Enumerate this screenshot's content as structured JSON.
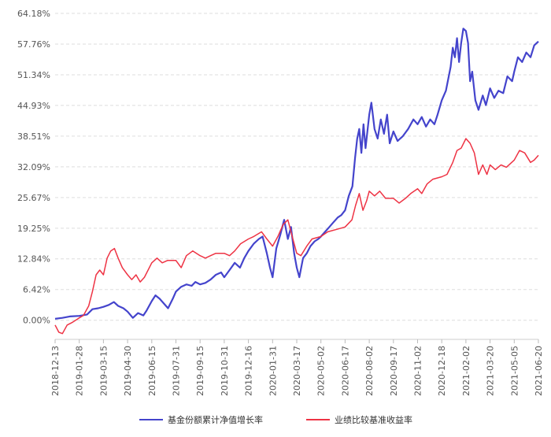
{
  "chart_data": {
    "type": "line",
    "title": "",
    "xlabel": "",
    "ylabel": "",
    "ylim": [
      -4.0,
      64.18
    ],
    "y_ticks": [
      "64.18%",
      "57.76%",
      "51.34%",
      "44.93%",
      "38.51%",
      "32.09%",
      "25.67%",
      "19.25%",
      "12.84%",
      "6.42%",
      "0.00%"
    ],
    "y_tick_values": [
      64.18,
      57.76,
      51.34,
      44.93,
      38.51,
      32.09,
      25.67,
      19.25,
      12.84,
      6.42,
      0.0
    ],
    "x_ticks": [
      "2018-12-13",
      "2019-01-28",
      "2019-03-15",
      "2019-04-30",
      "2019-06-15",
      "2019-07-31",
      "2019-09-15",
      "2019-10-31",
      "2019-12-16",
      "2020-01-31",
      "2020-03-17",
      "2020-05-02",
      "2020-06-17",
      "2020-08-02",
      "2020-09-17",
      "2020-11-02",
      "2020-12-18",
      "2021-02-02",
      "2021-03-20",
      "2021-05-05",
      "2021-06-20"
    ],
    "grid": "horizontal-dashed",
    "legend_position": "bottom",
    "series": [
      {
        "name": "基金份额累计净值增长率",
        "color": "#4444cc",
        "points": [
          [
            "2018-12-13",
            0.3
          ],
          [
            "2018-12-27",
            0.5
          ],
          [
            "2019-01-10",
            0.8
          ],
          [
            "2019-01-28",
            0.9
          ],
          [
            "2019-02-12",
            1.2
          ],
          [
            "2019-02-22",
            2.3
          ],
          [
            "2019-03-05",
            2.5
          ],
          [
            "2019-03-15",
            2.8
          ],
          [
            "2019-03-25",
            3.2
          ],
          [
            "2019-04-04",
            3.8
          ],
          [
            "2019-04-12",
            3.0
          ],
          [
            "2019-04-22",
            2.5
          ],
          [
            "2019-04-30",
            1.8
          ],
          [
            "2019-05-10",
            0.5
          ],
          [
            "2019-05-20",
            1.5
          ],
          [
            "2019-05-30",
            1.0
          ],
          [
            "2019-06-05",
            2.0
          ],
          [
            "2019-06-15",
            4.0
          ],
          [
            "2019-06-22",
            5.2
          ],
          [
            "2019-06-30",
            4.5
          ],
          [
            "2019-07-08",
            3.5
          ],
          [
            "2019-07-16",
            2.5
          ],
          [
            "2019-07-25",
            4.5
          ],
          [
            "2019-07-31",
            6.0
          ],
          [
            "2019-08-10",
            7.0
          ],
          [
            "2019-08-20",
            7.5
          ],
          [
            "2019-08-30",
            7.2
          ],
          [
            "2019-09-06",
            8.0
          ],
          [
            "2019-09-15",
            7.5
          ],
          [
            "2019-09-25",
            7.8
          ],
          [
            "2019-10-05",
            8.5
          ],
          [
            "2019-10-15",
            9.5
          ],
          [
            "2019-10-25",
            10.0
          ],
          [
            "2019-10-31",
            9.0
          ],
          [
            "2019-11-10",
            10.5
          ],
          [
            "2019-11-20",
            12.0
          ],
          [
            "2019-11-30",
            11.0
          ],
          [
            "2019-12-08",
            13.0
          ],
          [
            "2019-12-16",
            14.5
          ],
          [
            "2019-12-26",
            16.0
          ],
          [
            "2020-01-05",
            17.0
          ],
          [
            "2020-01-12",
            17.5
          ],
          [
            "2020-01-20",
            14.0
          ],
          [
            "2020-01-26",
            11.0
          ],
          [
            "2020-01-31",
            9.0
          ],
          [
            "2020-02-07",
            15.0
          ],
          [
            "2020-02-15",
            18.0
          ],
          [
            "2020-02-22",
            21.0
          ],
          [
            "2020-02-29",
            17.0
          ],
          [
            "2020-03-06",
            19.5
          ],
          [
            "2020-03-12",
            14.0
          ],
          [
            "2020-03-17",
            11.0
          ],
          [
            "2020-03-22",
            9.0
          ],
          [
            "2020-03-29",
            13.0
          ],
          [
            "2020-04-05",
            14.0
          ],
          [
            "2020-04-12",
            15.5
          ],
          [
            "2020-04-20",
            16.5
          ],
          [
            "2020-04-27",
            17.0
          ],
          [
            "2020-05-02",
            17.5
          ],
          [
            "2020-05-10",
            18.5
          ],
          [
            "2020-05-18",
            19.5
          ],
          [
            "2020-05-26",
            20.5
          ],
          [
            "2020-06-03",
            21.5
          ],
          [
            "2020-06-10",
            22.0
          ],
          [
            "2020-06-17",
            23.0
          ],
          [
            "2020-06-24",
            26.0
          ],
          [
            "2020-07-01",
            28.0
          ],
          [
            "2020-07-06",
            34.0
          ],
          [
            "2020-07-10",
            38.0
          ],
          [
            "2020-07-14",
            40.0
          ],
          [
            "2020-07-18",
            35.0
          ],
          [
            "2020-07-22",
            41.0
          ],
          [
            "2020-07-26",
            36.0
          ],
          [
            "2020-08-02",
            43.0
          ],
          [
            "2020-08-06",
            45.5
          ],
          [
            "2020-08-12",
            40.0
          ],
          [
            "2020-08-18",
            38.0
          ],
          [
            "2020-08-24",
            42.0
          ],
          [
            "2020-08-30",
            39.0
          ],
          [
            "2020-09-05",
            43.0
          ],
          [
            "2020-09-10",
            37.0
          ],
          [
            "2020-09-17",
            39.5
          ],
          [
            "2020-09-25",
            37.5
          ],
          [
            "2020-10-05",
            38.5
          ],
          [
            "2020-10-15",
            40.0
          ],
          [
            "2020-10-25",
            42.0
          ],
          [
            "2020-11-02",
            41.0
          ],
          [
            "2020-11-10",
            42.5
          ],
          [
            "2020-11-18",
            40.5
          ],
          [
            "2020-11-26",
            42.0
          ],
          [
            "2020-12-04",
            41.0
          ],
          [
            "2020-12-10",
            43.0
          ],
          [
            "2020-12-18",
            46.0
          ],
          [
            "2020-12-26",
            48.0
          ],
          [
            "2021-01-04",
            53.0
          ],
          [
            "2021-01-08",
            57.0
          ],
          [
            "2021-01-12",
            55.0
          ],
          [
            "2021-01-16",
            59.0
          ],
          [
            "2021-01-20",
            54.0
          ],
          [
            "2021-01-24",
            58.0
          ],
          [
            "2021-01-28",
            61.0
          ],
          [
            "2021-02-02",
            60.5
          ],
          [
            "2021-02-06",
            58.0
          ],
          [
            "2021-02-10",
            50.0
          ],
          [
            "2021-02-14",
            52.0
          ],
          [
            "2021-02-20",
            46.0
          ],
          [
            "2021-02-26",
            44.0
          ],
          [
            "2021-03-06",
            47.0
          ],
          [
            "2021-03-12",
            45.0
          ],
          [
            "2021-03-20",
            48.5
          ],
          [
            "2021-03-28",
            46.5
          ],
          [
            "2021-04-05",
            48.0
          ],
          [
            "2021-04-14",
            47.5
          ],
          [
            "2021-04-22",
            51.0
          ],
          [
            "2021-05-01",
            50.0
          ],
          [
            "2021-05-05",
            52.0
          ],
          [
            "2021-05-12",
            55.0
          ],
          [
            "2021-05-20",
            54.0
          ],
          [
            "2021-05-28",
            56.0
          ],
          [
            "2021-06-05",
            55.0
          ],
          [
            "2021-06-12",
            57.5
          ],
          [
            "2021-06-20",
            58.3
          ]
        ]
      },
      {
        "name": "业绩比较基准收益率",
        "color": "#ee3344",
        "points": [
          [
            "2018-12-13",
            -1.0
          ],
          [
            "2018-12-20",
            -2.5
          ],
          [
            "2018-12-27",
            -2.8
          ],
          [
            "2019-01-05",
            -1.0
          ],
          [
            "2019-01-14",
            -0.5
          ],
          [
            "2019-01-28",
            0.5
          ],
          [
            "2019-02-05",
            1.0
          ],
          [
            "2019-02-15",
            3.0
          ],
          [
            "2019-02-22",
            6.0
          ],
          [
            "2019-03-01",
            9.5
          ],
          [
            "2019-03-08",
            10.5
          ],
          [
            "2019-03-15",
            9.5
          ],
          [
            "2019-03-22",
            13.0
          ],
          [
            "2019-03-29",
            14.5
          ],
          [
            "2019-04-05",
            15.0
          ],
          [
            "2019-04-12",
            13.0
          ],
          [
            "2019-04-20",
            11.0
          ],
          [
            "2019-04-30",
            9.5
          ],
          [
            "2019-05-08",
            8.5
          ],
          [
            "2019-05-16",
            9.5
          ],
          [
            "2019-05-24",
            8.0
          ],
          [
            "2019-06-01",
            9.0
          ],
          [
            "2019-06-15",
            12.0
          ],
          [
            "2019-06-25",
            13.0
          ],
          [
            "2019-07-05",
            12.0
          ],
          [
            "2019-07-15",
            12.5
          ],
          [
            "2019-07-31",
            12.5
          ],
          [
            "2019-08-10",
            11.0
          ],
          [
            "2019-08-20",
            13.5
          ],
          [
            "2019-09-01",
            14.5
          ],
          [
            "2019-09-15",
            13.5
          ],
          [
            "2019-09-25",
            13.0
          ],
          [
            "2019-10-05",
            13.5
          ],
          [
            "2019-10-15",
            14.0
          ],
          [
            "2019-10-31",
            14.0
          ],
          [
            "2019-11-10",
            13.5
          ],
          [
            "2019-11-20",
            14.5
          ],
          [
            "2019-12-01",
            16.0
          ],
          [
            "2019-12-16",
            17.0
          ],
          [
            "2019-12-26",
            17.5
          ],
          [
            "2020-01-10",
            18.5
          ],
          [
            "2020-01-20",
            17.0
          ],
          [
            "2020-01-31",
            15.5
          ],
          [
            "2020-02-10",
            17.5
          ],
          [
            "2020-02-20",
            20.0
          ],
          [
            "2020-02-29",
            21.0
          ],
          [
            "2020-03-06",
            18.5
          ],
          [
            "2020-03-12",
            16.0
          ],
          [
            "2020-03-17",
            14.0
          ],
          [
            "2020-03-25",
            13.5
          ],
          [
            "2020-04-05",
            15.5
          ],
          [
            "2020-04-15",
            17.0
          ],
          [
            "2020-05-02",
            17.5
          ],
          [
            "2020-05-15",
            18.5
          ],
          [
            "2020-06-01",
            19.0
          ],
          [
            "2020-06-17",
            19.5
          ],
          [
            "2020-06-30",
            21.0
          ],
          [
            "2020-07-07",
            24.0
          ],
          [
            "2020-07-14",
            26.5
          ],
          [
            "2020-07-21",
            23.0
          ],
          [
            "2020-07-28",
            25.0
          ],
          [
            "2020-08-02",
            27.0
          ],
          [
            "2020-08-12",
            26.0
          ],
          [
            "2020-08-22",
            27.0
          ],
          [
            "2020-09-02",
            25.5
          ],
          [
            "2020-09-17",
            25.5
          ],
          [
            "2020-09-28",
            24.5
          ],
          [
            "2020-10-10",
            25.5
          ],
          [
            "2020-10-20",
            26.5
          ],
          [
            "2020-11-02",
            27.5
          ],
          [
            "2020-11-10",
            26.5
          ],
          [
            "2020-11-20",
            28.5
          ],
          [
            "2020-12-01",
            29.5
          ],
          [
            "2020-12-18",
            30.0
          ],
          [
            "2020-12-28",
            30.5
          ],
          [
            "2021-01-08",
            33.0
          ],
          [
            "2021-01-16",
            35.5
          ],
          [
            "2021-01-24",
            36.0
          ],
          [
            "2021-02-02",
            38.0
          ],
          [
            "2021-02-10",
            37.0
          ],
          [
            "2021-02-18",
            35.0
          ],
          [
            "2021-02-26",
            30.5
          ],
          [
            "2021-03-06",
            32.5
          ],
          [
            "2021-03-14",
            30.5
          ],
          [
            "2021-03-20",
            32.5
          ],
          [
            "2021-03-30",
            31.5
          ],
          [
            "2021-04-10",
            32.5
          ],
          [
            "2021-04-20",
            32.0
          ],
          [
            "2021-05-05",
            33.5
          ],
          [
            "2021-05-15",
            35.5
          ],
          [
            "2021-05-25",
            35.0
          ],
          [
            "2021-06-05",
            33.0
          ],
          [
            "2021-06-12",
            33.5
          ],
          [
            "2021-06-20",
            34.5
          ]
        ]
      }
    ]
  }
}
